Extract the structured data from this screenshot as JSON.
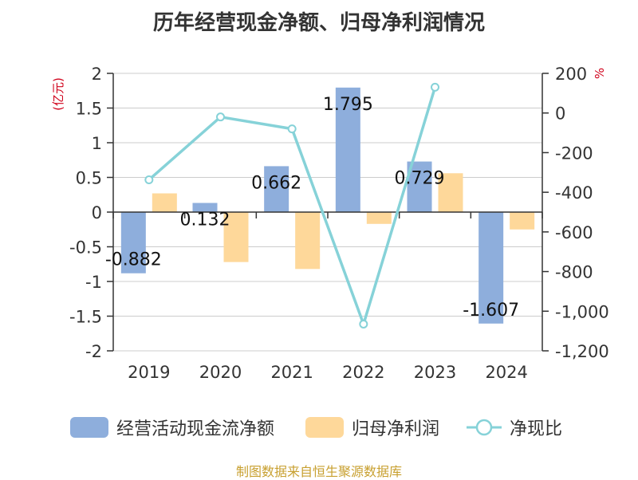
{
  "title": "历年经营现金净额、归母净利润情况",
  "source": "制图数据来自恒生聚源数据库",
  "colors": {
    "cash_flow": "#8eaedc",
    "net_profit": "#fed89a",
    "ratio": "#86d2d8",
    "axis_unit": "#d0021b"
  },
  "chart_data": {
    "type": "bar",
    "categories": [
      "2019",
      "2020",
      "2021",
      "2022",
      "2023",
      "2024"
    ],
    "series": [
      {
        "name": "经营活动现金流净额",
        "type": "bar",
        "axis": "left",
        "values": [
          -0.882,
          0.132,
          0.662,
          1.795,
          0.729,
          -1.607
        ],
        "labels": [
          "-0.882",
          "0.132",
          "0.662",
          "1.795",
          "0.729",
          "-1.607"
        ]
      },
      {
        "name": "归母净利润",
        "type": "bar",
        "axis": "left",
        "values": [
          0.27,
          -0.72,
          -0.82,
          -0.17,
          0.56,
          -0.25
        ]
      },
      {
        "name": "净现比",
        "type": "line",
        "axis": "right",
        "values": [
          -337,
          -20,
          -80,
          -1065,
          130,
          null
        ]
      }
    ],
    "y_left": {
      "unit": "(亿元)",
      "ylim": [
        -2,
        2
      ],
      "ticks": [
        2,
        1.5,
        1,
        0.5,
        0,
        -0.5,
        -1,
        -1.5,
        -2
      ],
      "tick_labels": [
        "2",
        "1.5",
        "1",
        "0.5",
        "0",
        "-0.5",
        "-1",
        "-1.5",
        "-2"
      ]
    },
    "y_right": {
      "unit": "%",
      "ylim": [
        -1200,
        200
      ],
      "ticks": [
        200,
        0,
        -200,
        -400,
        -600,
        -800,
        -1000,
        -1200
      ],
      "tick_labels": [
        "200",
        "0",
        "-200",
        "-400",
        "-600",
        "-800",
        "-1,000",
        "-1,200"
      ]
    },
    "grid": true,
    "legend": "bottom"
  }
}
